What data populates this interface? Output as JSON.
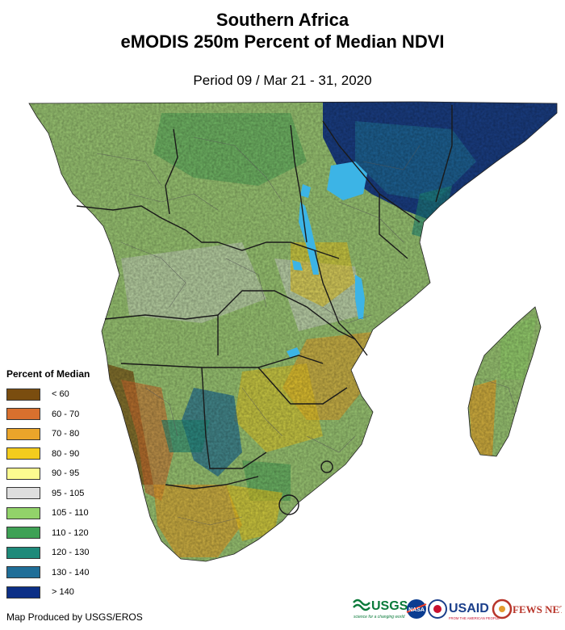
{
  "title_line1": "Southern Africa",
  "title_line2": "eMODIS 250m Percent of Median NDVI",
  "period": "Period 09 / Mar 21 - 31, 2020",
  "legend": {
    "title": "Percent of Median",
    "items": [
      {
        "label": "< 60",
        "color": "#7a4d0f"
      },
      {
        "label": "60 - 70",
        "color": "#d8702e"
      },
      {
        "label": "70 - 80",
        "color": "#eba52a"
      },
      {
        "label": "80 - 90",
        "color": "#f3cc1d"
      },
      {
        "label": "90 - 95",
        "color": "#fdfb90"
      },
      {
        "label": "95 - 105",
        "color": "#dedede"
      },
      {
        "label": "105 - 110",
        "color": "#92d36a"
      },
      {
        "label": "110 - 120",
        "color": "#3ea155"
      },
      {
        "label": "120 - 130",
        "color": "#1e8a7a"
      },
      {
        "label": "130 - 140",
        "color": "#1f6e98"
      },
      {
        "label": "> 140",
        "color": "#0c2f86"
      }
    ]
  },
  "credit": "Map Produced by USGS/EROS",
  "logos": {
    "usgs": "USGS",
    "usgs_tagline": "science for a changing world",
    "nasa": "NASA",
    "usaid": "USAID",
    "usaid_tagline": "FROM THE AMERICAN PEOPLE",
    "fewsnet": "FEWS NET"
  },
  "colors": {
    "water": "#3cb4e6",
    "land_base": "#9cc874",
    "border": "#1a1a1a",
    "subborder": "#555555"
  }
}
